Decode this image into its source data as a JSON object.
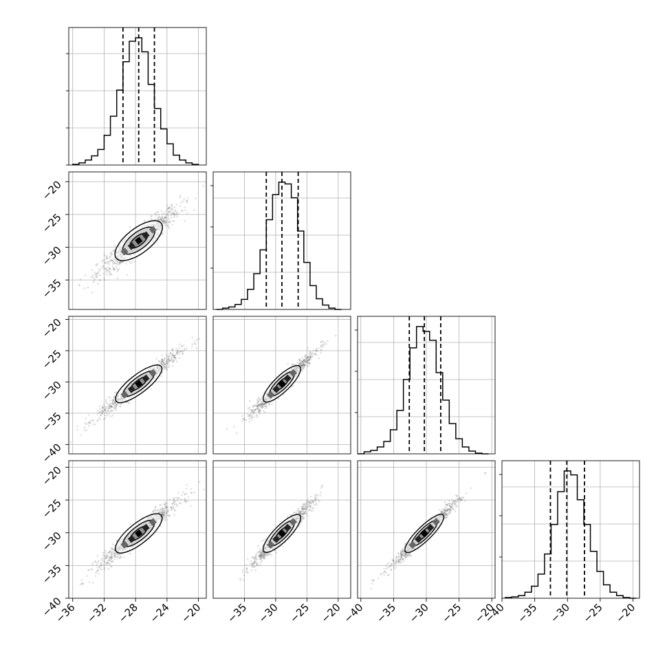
{
  "chart_data": {
    "type": "corner",
    "variables": 4,
    "grid": true,
    "quantiles_dashed": true,
    "histograms": [
      {
        "xlim": [
          -36.5,
          -19
        ],
        "bins": [
          -36.0,
          -35.2,
          -34.4,
          -33.6,
          -32.8,
          -32.0,
          -31.2,
          -30.4,
          -29.6,
          -28.8,
          -28.0,
          -27.2,
          -26.4,
          -25.6,
          -24.8,
          -24.0,
          -23.2,
          -22.4,
          -21.6,
          -20.8
        ],
        "counts": [
          1,
          3,
          7,
          13,
          22,
          42,
          69,
          106,
          146,
          175,
          180,
          160,
          114,
          80,
          51,
          30,
          14,
          7,
          3,
          1
        ],
        "quantiles": [
          -29.6,
          -27.6,
          -25.6
        ]
      },
      {
        "xlim": [
          -40,
          -18
        ],
        "bins": [
          -39.5,
          -38.5,
          -37.5,
          -36.5,
          -35.5,
          -34.5,
          -33.5,
          -32.5,
          -31.5,
          -30.5,
          -29.5,
          -28.5,
          -27.5,
          -26.5,
          -25.5,
          -24.5,
          -23.5,
          -22.5,
          -21.5,
          -20.5
        ],
        "counts": [
          0,
          2,
          4,
          8,
          16,
          32,
          57,
          95,
          143,
          183,
          203,
          200,
          178,
          125,
          75,
          38,
          17,
          7,
          2,
          0
        ],
        "quantiles": [
          -31.5,
          -29.0,
          -26.4
        ]
      },
      {
        "xlim": [
          -40.5,
          -19.5
        ],
        "bins": [
          -40.5,
          -39.5,
          -38.5,
          -37.5,
          -36.5,
          -35.5,
          -34.5,
          -33.5,
          -32.5,
          -31.5,
          -30.5,
          -29.5,
          -28.5,
          -27.5,
          -26.5,
          -25.5,
          -24.5,
          -23.5,
          -22.5,
          -21.5
        ],
        "counts": [
          0,
          3,
          5,
          10,
          18,
          35,
          63,
          108,
          154,
          185,
          178,
          165,
          118,
          78,
          44,
          22,
          10,
          4,
          1,
          0
        ],
        "quantiles": [
          -32.6,
          -30.3,
          -27.8
        ]
      },
      {
        "xlim": [
          -40,
          -19
        ],
        "bins": [
          -39.5,
          -38.5,
          -37.5,
          -36.5,
          -35.5,
          -34.5,
          -33.5,
          -32.5,
          -31.5,
          -30.5,
          -29.5,
          -28.5,
          -27.5,
          -26.5,
          -25.5,
          -24.5,
          -23.5,
          -22.5,
          -21.5,
          -20.5
        ],
        "counts": [
          1,
          2,
          4,
          9,
          18,
          36,
          66,
          110,
          159,
          190,
          184,
          147,
          110,
          70,
          40,
          20,
          9,
          4,
          1,
          0
        ],
        "quantiles": [
          -32.6,
          -30.1,
          -27.4
        ]
      }
    ],
    "scatter_panels": [
      {
        "row": 1,
        "col": 0,
        "center": [
          -27.6,
          -29.0
        ],
        "corr": 0.93
      },
      {
        "row": 2,
        "col": 0,
        "center": [
          -27.6,
          -30.3
        ],
        "corr": 0.97
      },
      {
        "row": 2,
        "col": 1,
        "center": [
          -29.0,
          -30.3
        ],
        "corr": 0.97
      },
      {
        "row": 3,
        "col": 0,
        "center": [
          -27.6,
          -30.1
        ],
        "corr": 0.96
      },
      {
        "row": 3,
        "col": 1,
        "center": [
          -29.0,
          -30.1
        ],
        "corr": 0.97
      },
      {
        "row": 3,
        "col": 2,
        "center": [
          -30.3,
          -30.1
        ],
        "corr": 0.98
      }
    ],
    "y_ticks": [
      null,
      {
        "values": [
          -20,
          -25,
          -30,
          -35
        ],
        "labels": [
          "−20",
          "−25",
          "−30",
          "−35"
        ],
        "ylim": [
          -39.5,
          -18.5
        ]
      },
      {
        "values": [
          -20,
          -25,
          -30,
          -35,
          -40
        ],
        "labels": [
          "−20",
          "−25",
          "−30",
          "−35",
          "−40"
        ],
        "ylim": [
          -41.5,
          -19.5
        ]
      },
      {
        "values": [
          -20,
          -25,
          -30,
          -35,
          -40
        ],
        "labels": [
          "−20",
          "−25",
          "−30",
          "−35",
          "−40"
        ],
        "ylim": [
          -40,
          -19
        ]
      }
    ],
    "x_ticks": [
      {
        "values": [
          -36,
          -32,
          -28,
          -24,
          -20
        ],
        "labels": [
          "−36",
          "−32",
          "−28",
          "−24",
          "−20"
        ]
      },
      {
        "values": [
          -35,
          -30,
          -25,
          -20
        ],
        "labels": [
          "−35",
          "−30",
          "−25",
          "−20"
        ]
      },
      {
        "values": [
          -40,
          -35,
          -30,
          -25,
          -20
        ],
        "labels": [
          "−40",
          "−35",
          "−30",
          "−25",
          "−20"
        ]
      },
      {
        "values": [
          -40,
          -35,
          -30,
          -25,
          -20
        ],
        "labels": [
          "−40",
          "−35",
          "−30",
          "−25",
          "−20"
        ]
      }
    ]
  }
}
